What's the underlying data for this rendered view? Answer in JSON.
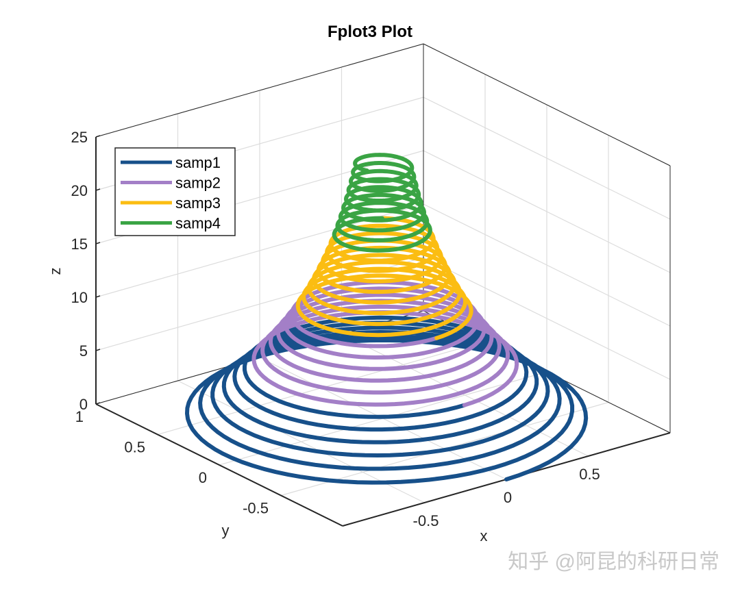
{
  "chart_data": {
    "type": "line3d",
    "title": "Fplot3 Plot",
    "xlabel": "x",
    "ylabel": "y",
    "zlabel": "z",
    "xlim": [
      -1,
      1
    ],
    "ylim": [
      -1,
      1
    ],
    "zlim": [
      0,
      25
    ],
    "xticks": [
      -0.5,
      0,
      0.5
    ],
    "xtick_labels": [
      "-0.5",
      "0",
      "0.5"
    ],
    "yticks": [
      1,
      0.5,
      0,
      -0.5
    ],
    "ytick_labels": [
      "1",
      "0.5",
      "0",
      "-0.5"
    ],
    "zticks": [
      0,
      5,
      10,
      15,
      20,
      25
    ],
    "ztick_labels": [
      "0",
      "5",
      "10",
      "15",
      "20",
      "25"
    ],
    "grid": true,
    "view": {
      "azimuth": -37.5,
      "elevation": 30
    },
    "legend_position": "top-left",
    "helix": {
      "radius_decay": 12,
      "turns_per_unit_z": 1.2
    },
    "series": [
      {
        "name": "samp1",
        "color": "#17508a",
        "t_range": [
          0,
          5
        ]
      },
      {
        "name": "samp2",
        "color": "#a37fc7",
        "t_range": [
          5,
          10
        ]
      },
      {
        "name": "samp3",
        "color": "#fbbd12",
        "t_range": [
          10,
          17
        ]
      },
      {
        "name": "samp4",
        "color": "#3aa444",
        "t_range": [
          17,
          24
        ]
      }
    ]
  },
  "watermark": "知乎 @阿昆的科研日常"
}
